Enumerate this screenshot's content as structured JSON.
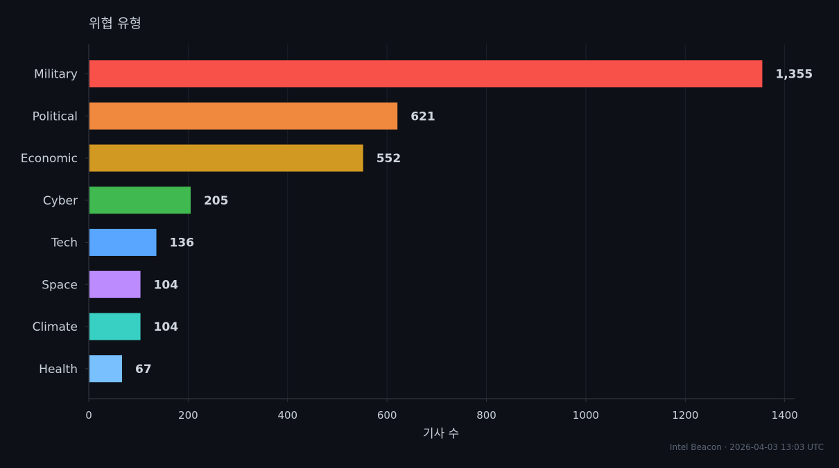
{
  "chart_data": {
    "type": "bar",
    "orientation": "horizontal",
    "title": "위협 유형",
    "xlabel": "기사 수",
    "ylabel": "",
    "xlim": [
      0,
      1420
    ],
    "xticks": [
      0,
      200,
      400,
      600,
      800,
      1000,
      1200,
      1400
    ],
    "grid": "vertical",
    "categories": [
      "Military",
      "Political",
      "Economic",
      "Cyber",
      "Tech",
      "Space",
      "Climate",
      "Health"
    ],
    "values": [
      1355,
      621,
      552,
      205,
      136,
      104,
      104,
      67
    ],
    "value_labels": [
      "1,355",
      "621",
      "552",
      "205",
      "136",
      "104",
      "104",
      "67"
    ],
    "colors": [
      "#f85149",
      "#f0883e",
      "#d29922",
      "#3fb950",
      "#58a6ff",
      "#bc8cff",
      "#39d0c4",
      "#79c0ff"
    ]
  },
  "footer": {
    "watermark": "Intel Beacon · 2026-04-03 13:03 UTC"
  },
  "theme": {
    "background": "#0d1017",
    "text": "#c9d1d9",
    "value_label": "#d0d6de",
    "grid": "#1c212a",
    "axis": "#30363d"
  }
}
